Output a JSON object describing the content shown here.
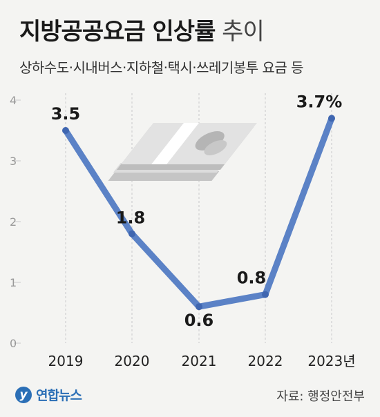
{
  "header": {
    "title_bold": "지방공공요금 인상률",
    "title_light": "추이",
    "subtitle": "상하수도·시내버스·지하철·택시·쓰레기봉투 요금 등"
  },
  "footer": {
    "logo_text": "연합뉴스",
    "logo_mark": "y",
    "source": "자료: 행정안전부"
  },
  "colors": {
    "line": "#5b82c6",
    "point": "#3f66b0",
    "grid": "#c9c9c9",
    "axis_text": "#999999"
  },
  "chart_data": {
    "type": "line",
    "x": [
      "2019",
      "2020",
      "2021",
      "2022",
      "2023년"
    ],
    "values": [
      3.5,
      1.8,
      0.6,
      0.8,
      3.7
    ],
    "data_labels": [
      "3.5",
      "1.8",
      "0.6",
      "0.8",
      "3.7%"
    ],
    "y_ticks": [
      0,
      1,
      2,
      3,
      4
    ],
    "ylim": [
      0,
      4
    ],
    "grid": "vertical dashed",
    "legend": "none"
  }
}
